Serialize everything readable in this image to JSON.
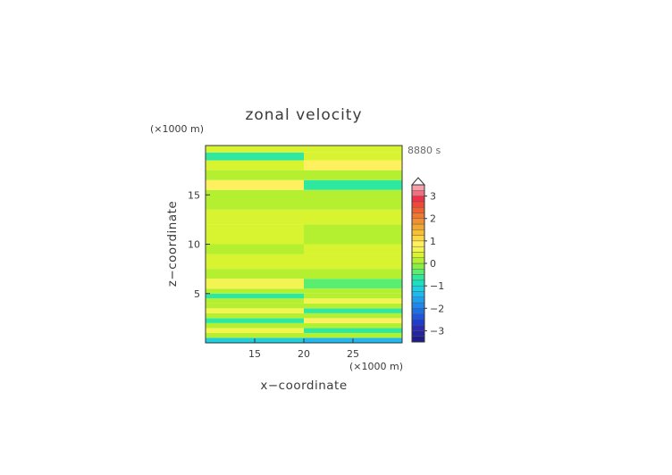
{
  "chart_data": {
    "type": "heatmap",
    "title": "zonal velocity",
    "time_label": "8880 s",
    "xlabel": "x−coordinate",
    "ylabel": "z−coordinate",
    "x_unit": "(×1000 m)",
    "y_unit": "(×1000 m)",
    "xlim": [
      10,
      30
    ],
    "ylim": [
      0,
      20
    ],
    "x_ticks": [
      15,
      20,
      25
    ],
    "y_ticks": [
      5,
      10,
      15
    ],
    "colorbar": {
      "levels": [
        -3.5,
        -3.25,
        -3,
        -2.75,
        -2.5,
        -2.25,
        -2,
        -1.75,
        -1.5,
        -1.25,
        -1,
        -0.75,
        -0.5,
        -0.25,
        0,
        0.25,
        0.5,
        0.75,
        1,
        1.25,
        1.5,
        1.75,
        2,
        2.25,
        2.5,
        2.75,
        3,
        3.25,
        3.5
      ],
      "colors": [
        "#1c1c8c",
        "#24249e",
        "#2a2ab5",
        "#1e3ccd",
        "#1e55dc",
        "#1e6ee6",
        "#1e87ee",
        "#1ea0f0",
        "#1eb9f0",
        "#1ecfe0",
        "#1ee0c0",
        "#2ee8a0",
        "#5aee70",
        "#8aee40",
        "#b4f030",
        "#d8f430",
        "#f4f450",
        "#fff060",
        "#ffd840",
        "#f8c030",
        "#f0a830",
        "#f09030",
        "#f07830",
        "#f06030",
        "#f04838",
        "#f03048",
        "#f07080",
        "#f8a0a8"
      ],
      "tick_labels": [
        "3",
        "2",
        "1",
        "0",
        "−1",
        "−2",
        "−3"
      ],
      "tick_values": [
        3,
        2,
        1,
        0,
        -1,
        -2,
        -3
      ],
      "extend": "max"
    },
    "bands": [
      {
        "z": [
          0.0,
          0.5
        ],
        "left": -1.1,
        "right": -1.3
      },
      {
        "z": [
          0.5,
          1.0
        ],
        "left": 0.1,
        "right": 0.2
      },
      {
        "z": [
          1.0,
          1.5
        ],
        "left": 0.7,
        "right": -0.7
      },
      {
        "z": [
          1.5,
          2.0
        ],
        "left": 0.1,
        "right": 0.1
      },
      {
        "z": [
          2.0,
          2.5
        ],
        "left": -0.6,
        "right": 0.8
      },
      {
        "z": [
          2.5,
          3.0
        ],
        "left": 0.2,
        "right": 0.2
      },
      {
        "z": [
          3.0,
          3.5
        ],
        "left": 0.7,
        "right": -0.6
      },
      {
        "z": [
          3.5,
          4.0
        ],
        "left": 0.1,
        "right": 0.1
      },
      {
        "z": [
          4.0,
          4.5
        ],
        "left": 0.2,
        "right": 0.6
      },
      {
        "z": [
          4.5,
          5.0
        ],
        "left": -0.6,
        "right": 0.1
      },
      {
        "z": [
          5.0,
          5.5
        ],
        "left": 0.0,
        "right": 0.0
      },
      {
        "z": [
          5.5,
          6.5
        ],
        "left": 0.7,
        "right": -0.5
      },
      {
        "z": [
          6.5,
          7.5
        ],
        "left": 0.0,
        "right": 0.2
      },
      {
        "z": [
          7.5,
          9.0
        ],
        "left": 0.4,
        "right": 0.3
      },
      {
        "z": [
          9.0,
          10.0
        ],
        "left": 0.2,
        "right": 0.3
      },
      {
        "z": [
          10.0,
          12.0
        ],
        "left": 0.3,
        "right": 0.0
      },
      {
        "z": [
          12.0,
          13.5
        ],
        "left": 0.35,
        "right": 0.3
      },
      {
        "z": [
          13.5,
          15.5
        ],
        "left": 0.05,
        "right": 0.05
      },
      {
        "z": [
          15.5,
          16.5
        ],
        "left": 0.8,
        "right": -0.6
      },
      {
        "z": [
          16.5,
          17.5
        ],
        "left": 0.2,
        "right": 0.1
      },
      {
        "z": [
          17.5,
          18.5
        ],
        "left": 0.35,
        "right": 0.75
      },
      {
        "z": [
          18.5,
          19.3
        ],
        "left": -0.6,
        "right": 0.3
      },
      {
        "z": [
          19.3,
          20.0
        ],
        "left": 0.4,
        "right": 0.4
      }
    ]
  }
}
